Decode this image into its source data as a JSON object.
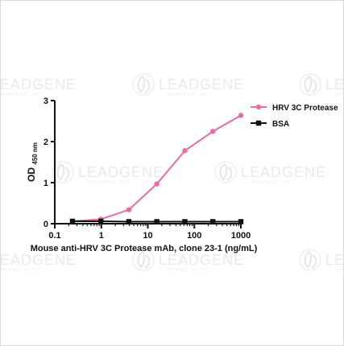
{
  "watermark": {
    "brand": "LEADGENE",
    "sub": "BIOMEDICAL, INC."
  },
  "chart_data": {
    "type": "line",
    "title": "",
    "xlabel": "Mouse anti-HRV 3C Protease mAb, clone 23-1 (ng/mL)",
    "ylabel_main": "OD",
    "ylabel_sub": "450 nm",
    "xscale": "log",
    "xlim": [
      0.1,
      1000
    ],
    "ylim": [
      0,
      3
    ],
    "xticks": [
      0.1,
      1,
      10,
      100,
      1000
    ],
    "xtick_labels": [
      "0.1",
      "1",
      "10",
      "100",
      "1000"
    ],
    "yticks": [
      0,
      1,
      2,
      3
    ],
    "ytick_labels": [
      "0",
      "1",
      "2",
      "3"
    ],
    "grid": false,
    "legend_position": "top-right",
    "series": [
      {
        "name": "HRV 3C Protease",
        "color": "#ee6aa7",
        "marker": "circle",
        "x": [
          0.24,
          0.98,
          3.9,
          15.6,
          62.5,
          250,
          1000
        ],
        "y": [
          0.06,
          0.11,
          0.34,
          0.97,
          1.78,
          2.25,
          2.64
        ]
      },
      {
        "name": "BSA",
        "color": "#111111",
        "marker": "square",
        "x": [
          0.24,
          0.98,
          3.9,
          15.6,
          62.5,
          250,
          1000
        ],
        "y": [
          0.06,
          0.06,
          0.05,
          0.05,
          0.05,
          0.05,
          0.05
        ]
      }
    ]
  }
}
